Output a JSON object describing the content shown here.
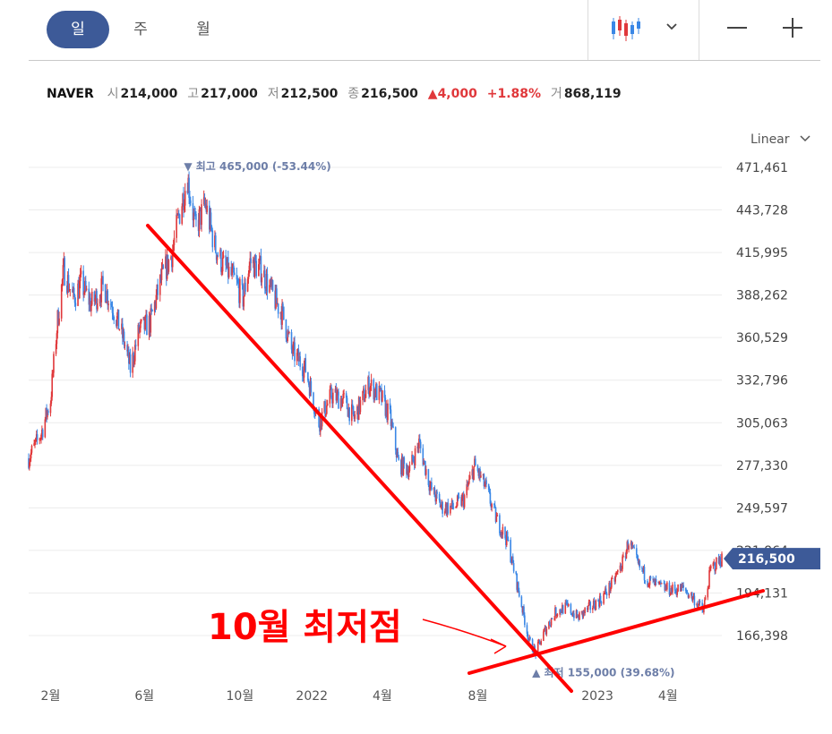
{
  "toolbar": {
    "tabs": [
      {
        "label": "일",
        "active": true
      },
      {
        "label": "주",
        "active": false
      },
      {
        "label": "월",
        "active": false
      }
    ],
    "chart_type_icon": "candlestick-icon",
    "dropdown_icon": "chevron-down-icon",
    "zoom_out_icon": "minus-icon",
    "zoom_in_icon": "plus-icon"
  },
  "quote": {
    "name": "NAVER",
    "open_label": "시",
    "open": "214,000",
    "high_label": "고",
    "high": "217,000",
    "low_label": "저",
    "low": "212,500",
    "close_label": "종",
    "close": "216,500",
    "change": "4,000",
    "change_pct": "+1.88%",
    "volume_label": "거",
    "volume": "868,119"
  },
  "scale": {
    "label": "Linear"
  },
  "colors": {
    "up": "#e0383b",
    "down": "#3a87e6",
    "accent": "#3d5a98",
    "annotation": "#ff0000",
    "marker_text": "#6d7ea8"
  },
  "chart_data": {
    "type": "candlestick",
    "ylim": [
      140000,
      478000
    ],
    "y_ticks": [
      "471,461",
      "443,728",
      "415,995",
      "388,262",
      "360,529",
      "332,796",
      "305,063",
      "277,330",
      "249,597",
      "221,864",
      "194,131",
      "166,398"
    ],
    "y_tick_values": [
      471461,
      443728,
      415995,
      388262,
      360529,
      332796,
      305063,
      277330,
      249597,
      221864,
      194131,
      166398
    ],
    "x_ticks": [
      "2월",
      "6월",
      "10월",
      "2022",
      "4월",
      "8월",
      "2023",
      "4월"
    ],
    "x_tick_dates": [
      "2021-02-01",
      "2021-06-01",
      "2021-10-01",
      "2022-01-01",
      "2022-04-01",
      "2022-08-01",
      "2023-01-01",
      "2023-04-01"
    ],
    "date_range": [
      "2021-01-04",
      "2023-06-09"
    ],
    "close_path": [
      [
        "2021-01-04",
        282000
      ],
      [
        "2021-01-20",
        298000
      ],
      [
        "2021-02-01",
        320000
      ],
      [
        "2021-02-10",
        372000
      ],
      [
        "2021-02-18",
        405000
      ],
      [
        "2021-03-02",
        386000
      ],
      [
        "2021-03-12",
        396000
      ],
      [
        "2021-03-25",
        382000
      ],
      [
        "2021-04-10",
        394000
      ],
      [
        "2021-04-22",
        380000
      ],
      [
        "2021-05-06",
        358000
      ],
      [
        "2021-05-14",
        340000
      ],
      [
        "2021-05-25",
        365000
      ],
      [
        "2021-06-08",
        370000
      ],
      [
        "2021-06-22",
        398000
      ],
      [
        "2021-07-06",
        415000
      ],
      [
        "2021-07-15",
        440000
      ],
      [
        "2021-07-26",
        465000
      ],
      [
        "2021-08-05",
        432000
      ],
      [
        "2021-08-18",
        447000
      ],
      [
        "2021-08-30",
        420000
      ],
      [
        "2021-09-09",
        408000
      ],
      [
        "2021-09-24",
        398000
      ],
      [
        "2021-10-05",
        386000
      ],
      [
        "2021-10-14",
        410000
      ],
      [
        "2021-10-28",
        405000
      ],
      [
        "2021-11-15",
        385000
      ],
      [
        "2021-11-25",
        375000
      ],
      [
        "2021-12-06",
        352000
      ],
      [
        "2021-12-24",
        340000
      ],
      [
        "2022-01-10",
        305000
      ],
      [
        "2022-01-26",
        323000
      ],
      [
        "2022-02-10",
        320000
      ],
      [
        "2022-02-24",
        308000
      ],
      [
        "2022-03-15",
        330000
      ],
      [
        "2022-03-30",
        322000
      ],
      [
        "2022-04-11",
        308000
      ],
      [
        "2022-04-22",
        278000
      ],
      [
        "2022-05-06",
        275000
      ],
      [
        "2022-05-18",
        292000
      ],
      [
        "2022-06-02",
        262000
      ],
      [
        "2022-06-16",
        250000
      ],
      [
        "2022-06-30",
        250000
      ],
      [
        "2022-07-14",
        255000
      ],
      [
        "2022-07-28",
        277000
      ],
      [
        "2022-08-11",
        263000
      ],
      [
        "2022-08-25",
        242000
      ],
      [
        "2022-09-08",
        228000
      ],
      [
        "2022-09-22",
        196000
      ],
      [
        "2022-10-06",
        162000
      ],
      [
        "2022-10-14",
        155000
      ],
      [
        "2022-10-26",
        170000
      ],
      [
        "2022-11-09",
        182000
      ],
      [
        "2022-11-23",
        185000
      ],
      [
        "2022-12-07",
        178000
      ],
      [
        "2022-12-21",
        184000
      ],
      [
        "2023-01-05",
        190000
      ],
      [
        "2023-01-20",
        200000
      ],
      [
        "2023-02-03",
        215000
      ],
      [
        "2023-02-10",
        228000
      ],
      [
        "2023-02-22",
        212000
      ],
      [
        "2023-03-08",
        202000
      ],
      [
        "2023-03-22",
        198000
      ],
      [
        "2023-04-07",
        196000
      ],
      [
        "2023-04-21",
        197000
      ],
      [
        "2023-05-05",
        190000
      ],
      [
        "2023-05-16",
        182000
      ],
      [
        "2023-05-26",
        210000
      ],
      [
        "2023-06-09",
        216500
      ]
    ],
    "high_marker": {
      "label": "최고",
      "value": "465,000 (-53.44%)",
      "price": 465000
    },
    "low_marker": {
      "label": "최저",
      "value": "155,000 (39.68%)",
      "price": 155000
    },
    "current_price": {
      "label": "216,500",
      "price": 216500
    }
  },
  "annotation": {
    "text": "10월 최저점"
  }
}
